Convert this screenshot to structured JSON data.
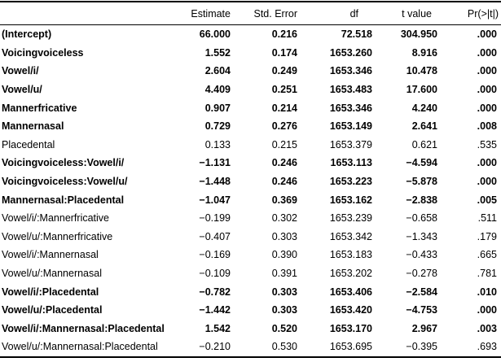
{
  "table": {
    "columns": {
      "term": "",
      "estimate": "Estimate",
      "std_error": "Std. Error",
      "df": "df",
      "t_value": "t value",
      "p_value": "Pr(>|t|)"
    },
    "rows": [
      {
        "label": "(Intercept)",
        "estimate": "66.000",
        "std_error": "0.216",
        "df": "72.518",
        "t_value": "304.950",
        "p": ".000",
        "bold": true
      },
      {
        "label": "Voicingvoiceless",
        "estimate": "1.552",
        "std_error": "0.174",
        "df": "1653.260",
        "t_value": "8.916",
        "p": ".000",
        "bold": true
      },
      {
        "label": "Vowel/i/",
        "estimate": "2.604",
        "std_error": "0.249",
        "df": "1653.346",
        "t_value": "10.478",
        "p": ".000",
        "bold": true
      },
      {
        "label": "Vowel/u/",
        "estimate": "4.409",
        "std_error": "0.251",
        "df": "1653.483",
        "t_value": "17.600",
        "p": ".000",
        "bold": true
      },
      {
        "label": "Mannerfricative",
        "estimate": "0.907",
        "std_error": "0.214",
        "df": "1653.346",
        "t_value": "4.240",
        "p": ".000",
        "bold": true
      },
      {
        "label": "Mannernasal",
        "estimate": "0.729",
        "std_error": "0.276",
        "df": "1653.149",
        "t_value": "2.641",
        "p": ".008",
        "bold": true
      },
      {
        "label": "Placedental",
        "estimate": "0.133",
        "std_error": "0.215",
        "df": "1653.379",
        "t_value": "0.621",
        "p": ".535",
        "bold": false
      },
      {
        "label": "Voicingvoiceless:Vowel/i/",
        "estimate": "−1.131",
        "std_error": "0.246",
        "df": "1653.113",
        "t_value": "−4.594",
        "p": ".000",
        "bold": true
      },
      {
        "label": "Voicingvoiceless:Vowel/u/",
        "estimate": "−1.448",
        "std_error": "0.246",
        "df": "1653.223",
        "t_value": "−5.878",
        "p": ".000",
        "bold": true
      },
      {
        "label": "Mannernasal:Placedental",
        "estimate": "−1.047",
        "std_error": "0.369",
        "df": "1653.162",
        "t_value": "−2.838",
        "p": ".005",
        "bold": true
      },
      {
        "label": "Vowel/i/:Mannerfricative",
        "estimate": "−0.199",
        "std_error": "0.302",
        "df": "1653.239",
        "t_value": "−0.658",
        "p": ".511",
        "bold": false
      },
      {
        "label": "Vowel/u/:Mannerfricative",
        "estimate": "−0.407",
        "std_error": "0.303",
        "df": "1653.342",
        "t_value": "−1.343",
        "p": ".179",
        "bold": false
      },
      {
        "label": "Vowel/i/:Mannernasal",
        "estimate": "−0.169",
        "std_error": "0.390",
        "df": "1653.183",
        "t_value": "−0.433",
        "p": ".665",
        "bold": false
      },
      {
        "label": "Vowel/u/:Mannernasal",
        "estimate": "−0.109",
        "std_error": "0.391",
        "df": "1653.202",
        "t_value": "−0.278",
        "p": ".781",
        "bold": false
      },
      {
        "label": "Vowel/i/:Placedental",
        "estimate": "−0.782",
        "std_error": "0.303",
        "df": "1653.406",
        "t_value": "−2.584",
        "p": ".010",
        "bold": true
      },
      {
        "label": "Vowel/u/:Placedental",
        "estimate": "−1.442",
        "std_error": "0.303",
        "df": "1653.420",
        "t_value": "−4.753",
        "p": ".000",
        "bold": true
      },
      {
        "label": "Vowel/i/:Mannernasal:Placedental",
        "estimate": "1.542",
        "std_error": "0.520",
        "df": "1653.170",
        "t_value": "2.967",
        "p": ".003",
        "bold": true
      },
      {
        "label": "Vowel/u/:Mannernasal:Placedental",
        "estimate": "−0.210",
        "std_error": "0.530",
        "df": "1653.695",
        "t_value": "−0.395",
        "p": ".693",
        "bold": false
      }
    ]
  }
}
